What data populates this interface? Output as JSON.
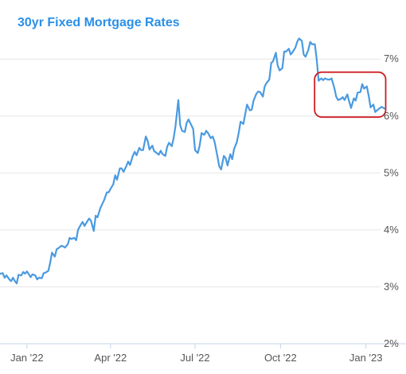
{
  "colors": {
    "title": "#2a8fe8",
    "line": "#4a9ae0",
    "grid": "#e6e6e6",
    "axis": "#c8d4e8",
    "highlight_box": "#cc1f24"
  },
  "chart_data": {
    "type": "line",
    "title": "30yr Fixed Mortgage Rates",
    "xlabel": "",
    "ylabel": "",
    "x_ticks": [
      "Jan '22",
      "Apr '22",
      "Jul '22",
      "Oct '22",
      "Jan '23"
    ],
    "y_ticks": [
      "2%",
      "3%",
      "4%",
      "5%",
      "6%",
      "7%"
    ],
    "ylim": [
      2,
      7.45
    ],
    "xlim": [
      "2021-12-03",
      "2023-01-21"
    ],
    "grid": "horizontal",
    "annotations": [
      {
        "type": "highlight-box",
        "x_range": [
          "2022-11-11",
          "2023-01-18"
        ],
        "y_range": [
          6.05,
          6.7
        ]
      }
    ],
    "series": [
      {
        "values": [
          [
            "2021-12-03",
            3.23
          ],
          [
            "2021-12-06",
            3.24
          ],
          [
            "2021-12-08",
            3.16
          ],
          [
            "2021-12-10",
            3.2
          ],
          [
            "2021-12-13",
            3.13
          ],
          [
            "2021-12-15",
            3.1
          ],
          [
            "2021-12-17",
            3.16
          ],
          [
            "2021-12-19",
            3.1
          ],
          [
            "2021-12-21",
            3.06
          ],
          [
            "2021-12-23",
            3.21
          ],
          [
            "2021-12-26",
            3.2
          ],
          [
            "2021-12-28",
            3.26
          ],
          [
            "2021-12-30",
            3.23
          ],
          [
            "2022-01-01",
            3.27
          ],
          [
            "2022-01-03",
            3.22
          ],
          [
            "2022-01-05",
            3.17
          ],
          [
            "2022-01-07",
            3.22
          ],
          [
            "2022-01-10",
            3.2
          ],
          [
            "2022-01-12",
            3.13
          ],
          [
            "2022-01-14",
            3.16
          ],
          [
            "2022-01-17",
            3.15
          ],
          [
            "2022-01-19",
            3.24
          ],
          [
            "2022-01-21",
            3.25
          ],
          [
            "2022-01-24",
            3.28
          ],
          [
            "2022-01-26",
            3.42
          ],
          [
            "2022-01-28",
            3.6
          ],
          [
            "2022-01-31",
            3.53
          ],
          [
            "2022-02-02",
            3.66
          ],
          [
            "2022-02-04",
            3.68
          ],
          [
            "2022-02-07",
            3.72
          ],
          [
            "2022-02-09",
            3.71
          ],
          [
            "2022-02-11",
            3.69
          ],
          [
            "2022-02-14",
            3.75
          ],
          [
            "2022-02-16",
            3.86
          ],
          [
            "2022-02-18",
            3.84
          ],
          [
            "2022-02-21",
            3.86
          ],
          [
            "2022-02-23",
            3.82
          ],
          [
            "2022-02-25",
            4.0
          ],
          [
            "2022-02-28",
            4.09
          ],
          [
            "2022-03-02",
            4.14
          ],
          [
            "2022-03-04",
            4.07
          ],
          [
            "2022-03-07",
            4.15
          ],
          [
            "2022-03-09",
            4.2
          ],
          [
            "2022-03-11",
            4.16
          ],
          [
            "2022-03-14",
            3.98
          ],
          [
            "2022-03-16",
            4.25
          ],
          [
            "2022-03-18",
            4.22
          ],
          [
            "2022-03-21",
            4.38
          ],
          [
            "2022-03-23",
            4.45
          ],
          [
            "2022-03-25",
            4.52
          ],
          [
            "2022-03-28",
            4.66
          ],
          [
            "2022-03-30",
            4.66
          ],
          [
            "2022-04-01",
            4.72
          ],
          [
            "2022-04-04",
            4.8
          ],
          [
            "2022-04-06",
            4.96
          ],
          [
            "2022-04-08",
            4.88
          ],
          [
            "2022-04-11",
            5.08
          ],
          [
            "2022-04-13",
            5.08
          ],
          [
            "2022-04-15",
            5.02
          ],
          [
            "2022-04-18",
            5.12
          ],
          [
            "2022-04-20",
            5.2
          ],
          [
            "2022-04-22",
            5.14
          ],
          [
            "2022-04-25",
            5.3
          ],
          [
            "2022-04-27",
            5.37
          ],
          [
            "2022-04-29",
            5.31
          ],
          [
            "2022-05-02",
            5.44
          ],
          [
            "2022-05-04",
            5.4
          ],
          [
            "2022-05-06",
            5.4
          ],
          [
            "2022-05-09",
            5.64
          ],
          [
            "2022-05-11",
            5.56
          ],
          [
            "2022-05-13",
            5.41
          ],
          [
            "2022-05-16",
            5.48
          ],
          [
            "2022-05-18",
            5.38
          ],
          [
            "2022-05-20",
            5.36
          ],
          [
            "2022-05-23",
            5.32
          ],
          [
            "2022-05-25",
            5.39
          ],
          [
            "2022-05-27",
            5.33
          ],
          [
            "2022-05-30",
            5.3
          ],
          [
            "2022-06-01",
            5.46
          ],
          [
            "2022-06-03",
            5.53
          ],
          [
            "2022-06-06",
            5.47
          ],
          [
            "2022-06-08",
            5.62
          ],
          [
            "2022-06-10",
            5.83
          ],
          [
            "2022-06-13",
            6.28
          ],
          [
            "2022-06-15",
            5.84
          ],
          [
            "2022-06-17",
            5.74
          ],
          [
            "2022-06-20",
            5.72
          ],
          [
            "2022-06-22",
            5.88
          ],
          [
            "2022-06-24",
            5.94
          ],
          [
            "2022-06-27",
            5.84
          ],
          [
            "2022-06-29",
            5.77
          ],
          [
            "2022-07-01",
            5.4
          ],
          [
            "2022-07-04",
            5.35
          ],
          [
            "2022-07-06",
            5.48
          ],
          [
            "2022-07-08",
            5.7
          ],
          [
            "2022-07-11",
            5.67
          ],
          [
            "2022-07-13",
            5.74
          ],
          [
            "2022-07-15",
            5.7
          ],
          [
            "2022-07-18",
            5.61
          ],
          [
            "2022-07-20",
            5.64
          ],
          [
            "2022-07-22",
            5.55
          ],
          [
            "2022-07-25",
            5.3
          ],
          [
            "2022-07-27",
            5.12
          ],
          [
            "2022-07-29",
            5.06
          ],
          [
            "2022-08-01",
            5.3
          ],
          [
            "2022-08-03",
            5.26
          ],
          [
            "2022-08-05",
            5.13
          ],
          [
            "2022-08-08",
            5.33
          ],
          [
            "2022-08-10",
            5.24
          ],
          [
            "2022-08-12",
            5.42
          ],
          [
            "2022-08-15",
            5.54
          ],
          [
            "2022-08-17",
            5.7
          ],
          [
            "2022-08-19",
            5.9
          ],
          [
            "2022-08-22",
            5.86
          ],
          [
            "2022-08-24",
            6.03
          ],
          [
            "2022-08-26",
            6.2
          ],
          [
            "2022-08-29",
            6.1
          ],
          [
            "2022-08-31",
            6.11
          ],
          [
            "2022-09-02",
            6.27
          ],
          [
            "2022-09-05",
            6.39
          ],
          [
            "2022-09-07",
            6.43
          ],
          [
            "2022-09-09",
            6.42
          ],
          [
            "2022-09-12",
            6.34
          ],
          [
            "2022-09-14",
            6.52
          ],
          [
            "2022-09-16",
            6.58
          ],
          [
            "2022-09-19",
            6.64
          ],
          [
            "2022-09-21",
            6.93
          ],
          [
            "2022-09-23",
            6.96
          ],
          [
            "2022-09-26",
            7.11
          ],
          [
            "2022-09-28",
            6.89
          ],
          [
            "2022-09-30",
            6.8
          ],
          [
            "2022-10-03",
            6.84
          ],
          [
            "2022-10-05",
            7.13
          ],
          [
            "2022-10-07",
            7.13
          ],
          [
            "2022-10-10",
            7.18
          ],
          [
            "2022-10-12",
            7.08
          ],
          [
            "2022-10-14",
            7.12
          ],
          [
            "2022-10-17",
            7.2
          ],
          [
            "2022-10-19",
            7.3
          ],
          [
            "2022-10-21",
            7.36
          ],
          [
            "2022-10-24",
            7.32
          ],
          [
            "2022-10-26",
            7.08
          ],
          [
            "2022-10-28",
            7.04
          ],
          [
            "2022-10-31",
            7.16
          ],
          [
            "2022-11-02",
            7.3
          ],
          [
            "2022-11-04",
            7.26
          ],
          [
            "2022-11-07",
            7.26
          ],
          [
            "2022-11-09",
            7.0
          ],
          [
            "2022-11-11",
            6.62
          ],
          [
            "2022-11-14",
            6.66
          ],
          [
            "2022-11-16",
            6.63
          ],
          [
            "2022-11-18",
            6.66
          ],
          [
            "2022-11-21",
            6.64
          ],
          [
            "2022-11-23",
            6.64
          ],
          [
            "2022-11-25",
            6.66
          ],
          [
            "2022-11-28",
            6.49
          ],
          [
            "2022-11-30",
            6.34
          ],
          [
            "2022-12-02",
            6.28
          ],
          [
            "2022-12-05",
            6.3
          ],
          [
            "2022-12-07",
            6.33
          ],
          [
            "2022-12-09",
            6.28
          ],
          [
            "2022-12-12",
            6.38
          ],
          [
            "2022-12-14",
            6.25
          ],
          [
            "2022-12-16",
            6.14
          ],
          [
            "2022-12-19",
            6.31
          ],
          [
            "2022-12-21",
            6.27
          ],
          [
            "2022-12-23",
            6.41
          ],
          [
            "2022-12-26",
            6.42
          ],
          [
            "2022-12-28",
            6.56
          ],
          [
            "2022-12-30",
            6.48
          ],
          [
            "2023-01-02",
            6.52
          ],
          [
            "2023-01-04",
            6.35
          ],
          [
            "2023-01-06",
            6.15
          ],
          [
            "2023-01-09",
            6.2
          ],
          [
            "2023-01-11",
            6.07
          ],
          [
            "2023-01-13",
            6.1
          ],
          [
            "2023-01-16",
            6.14
          ],
          [
            "2023-01-18",
            6.16
          ],
          [
            "2023-01-21",
            6.13
          ]
        ]
      }
    ]
  }
}
